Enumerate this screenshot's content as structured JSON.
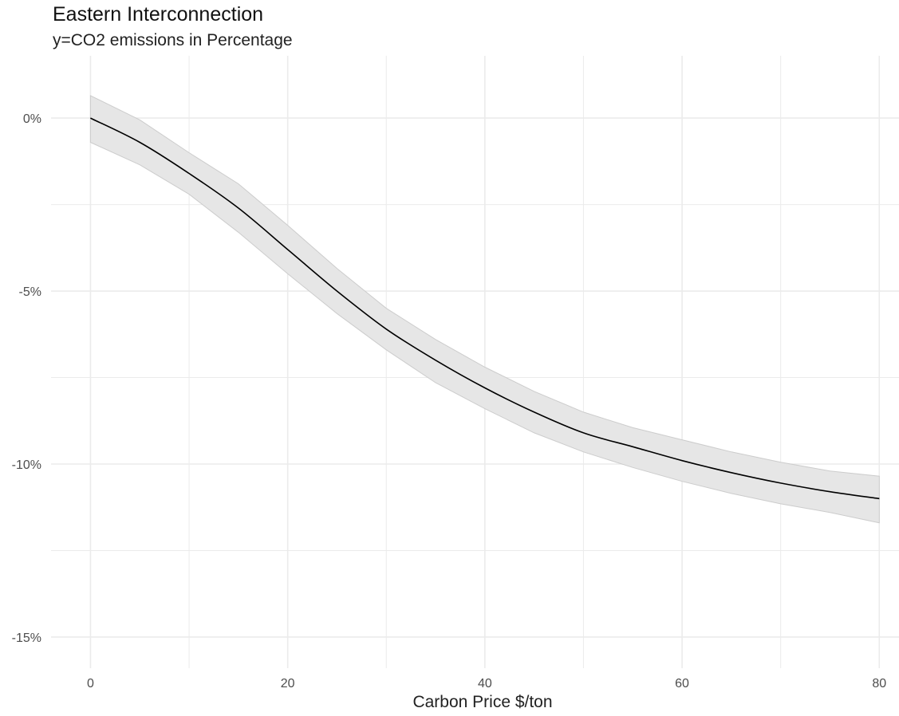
{
  "chart_data": {
    "type": "line",
    "title": "Eastern Interconnection",
    "subtitle": "y=CO2 emissions in Percentage",
    "xlabel": "Carbon Price $/ton",
    "ylabel": "",
    "xlim": [
      -4,
      82
    ],
    "ylim": [
      -15.9,
      1.8
    ],
    "x_ticks": [
      0,
      20,
      40,
      60,
      80
    ],
    "x_tick_labels": [
      "0",
      "20",
      "40",
      "60",
      "80"
    ],
    "y_ticks": [
      0,
      -5,
      -10,
      -15
    ],
    "y_tick_labels": [
      "0%",
      "-5%",
      "-10%",
      "-15%"
    ],
    "x_minor_grid": [
      10,
      30,
      50,
      70
    ],
    "y_minor_grid": [
      -2.5,
      -7.5,
      -12.5
    ],
    "grid": true,
    "legend": "none",
    "colors": {
      "line": "#000000",
      "ribbon": "#e6e6e6",
      "ribbon_edge": "#cccccc",
      "grid": "#ebebeb"
    },
    "series": [
      {
        "x": [
          0,
          5,
          10,
          15,
          20,
          25,
          30,
          35,
          40,
          45,
          50,
          55,
          60,
          65,
          70,
          75,
          80
        ],
        "y": [
          0,
          -0.7,
          -1.6,
          -2.6,
          -3.8,
          -5.0,
          -6.1,
          -7.0,
          -7.8,
          -8.5,
          -9.1,
          -9.5,
          -9.9,
          -10.25,
          -10.55,
          -10.8,
          -11.0
        ],
        "lower": [
          -0.7,
          -1.35,
          -2.2,
          -3.3,
          -4.5,
          -5.65,
          -6.7,
          -7.65,
          -8.4,
          -9.1,
          -9.65,
          -10.1,
          -10.5,
          -10.85,
          -11.15,
          -11.4,
          -11.7
        ],
        "upper": [
          0.65,
          -0.05,
          -1.0,
          -1.9,
          -3.1,
          -4.35,
          -5.5,
          -6.4,
          -7.2,
          -7.9,
          -8.5,
          -8.95,
          -9.3,
          -9.65,
          -9.95,
          -10.2,
          -10.35
        ]
      }
    ]
  }
}
